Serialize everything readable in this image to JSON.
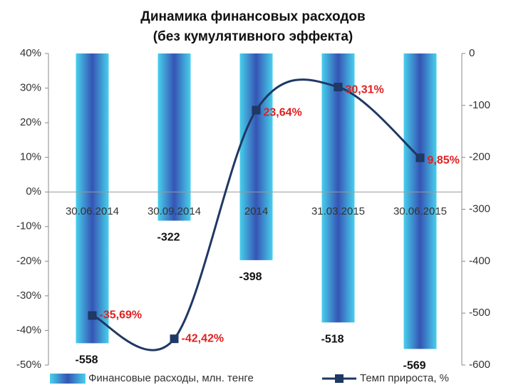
{
  "chart_data": {
    "type": "bar-line",
    "title": "Динамика финансовых расходов",
    "subtitle": "(без кумулятивного эффекта)",
    "categories": [
      "30.06.2014",
      "30.09.2014",
      "2014",
      "31.03.2015",
      "30.06.2015"
    ],
    "series": [
      {
        "name": "Финансовые расходы, млн. тенге",
        "type": "bar",
        "axis": "y2",
        "color": "#3554b4",
        "values": [
          -558,
          -322,
          -398,
          -518,
          -569
        ]
      },
      {
        "name": "Темп прироста, %",
        "type": "line",
        "axis": "y",
        "color": "#1f3864",
        "values": [
          -35.69,
          -42.42,
          23.64,
          30.31,
          9.85
        ],
        "value_labels": [
          "-35,69%",
          "-42,42%",
          "23,64%",
          "30,31%",
          "9,85%"
        ]
      }
    ],
    "ylim": [
      -50,
      40
    ],
    "yticks": [
      {
        "value": -50,
        "label": "-50%"
      },
      {
        "value": -40,
        "label": "-40%"
      },
      {
        "value": -30,
        "label": "-30%"
      },
      {
        "value": -20,
        "label": "-20%"
      },
      {
        "value": -10,
        "label": "-10%"
      },
      {
        "value": 0,
        "label": "0%"
      },
      {
        "value": 10,
        "label": "10%"
      },
      {
        "value": 20,
        "label": "20%"
      },
      {
        "value": 30,
        "label": "30%"
      },
      {
        "value": 40,
        "label": "40%"
      }
    ],
    "y2lim": [
      -600,
      0
    ],
    "y2ticks": [
      -600,
      -500,
      -400,
      -300,
      -200,
      -100,
      0
    ],
    "legend": "bottom"
  }
}
